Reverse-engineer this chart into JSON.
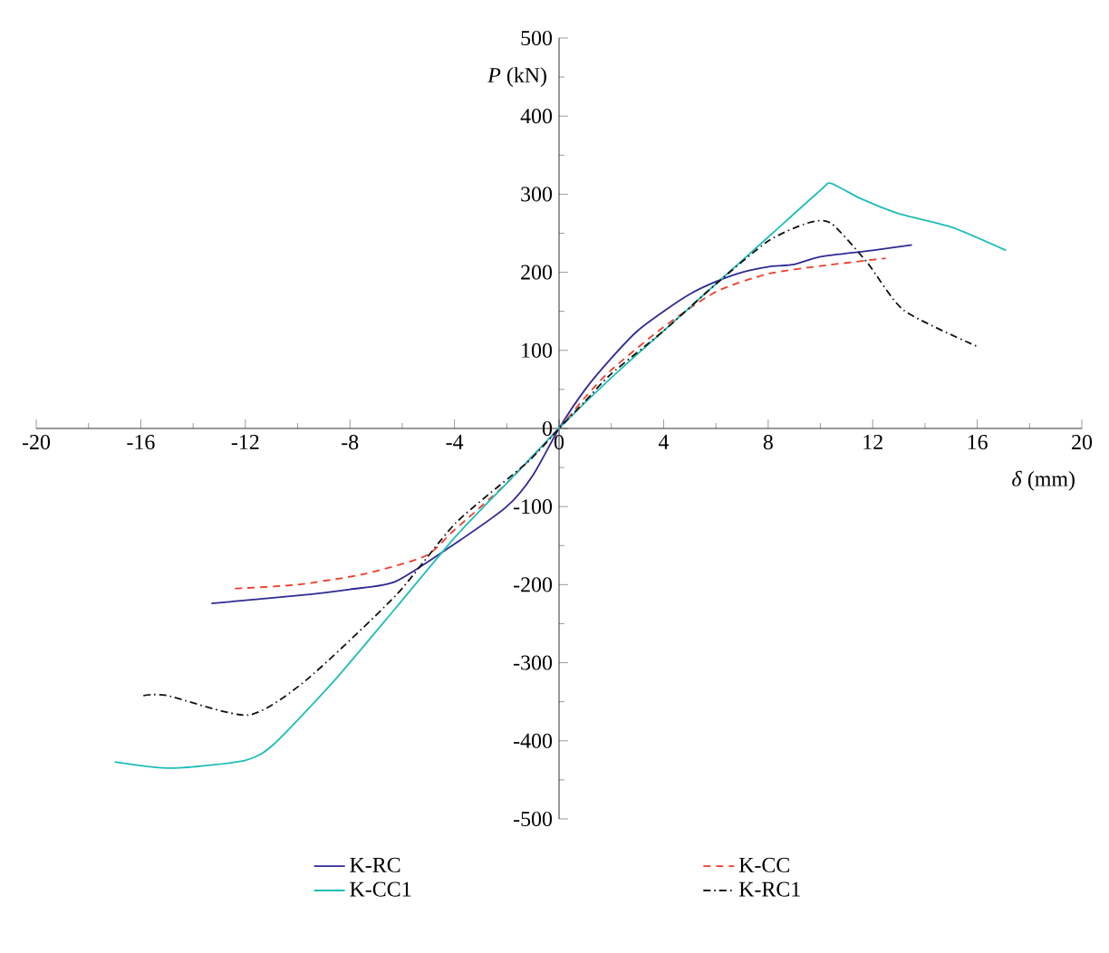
{
  "chart_data": {
    "type": "line",
    "xlabel": "*δ* (mm)",
    "ylabel": "*P* (kN)",
    "xlim": [
      -20,
      20
    ],
    "xticks": [
      -20,
      -16,
      -12,
      -8,
      -4,
      0,
      4,
      8,
      12,
      16,
      20
    ],
    "ylim": [
      -500,
      500
    ],
    "yticks": [
      -500,
      -400,
      -300,
      -200,
      -100,
      0,
      100,
      200,
      300,
      400,
      500
    ],
    "grid": false,
    "legend": "bottom",
    "marker": "none",
    "series": [
      {
        "name": "K-RC",
        "color": "#2e2a94",
        "line_style": "solid",
        "x": [
          -13.3,
          -10,
          -8,
          -6.25,
          -4,
          -2,
          -1,
          0,
          1,
          2,
          3,
          4,
          5,
          6,
          7,
          8,
          9,
          10,
          12,
          13.5
        ],
        "values": [
          -224,
          -214,
          -206,
          -196,
          -148,
          -100,
          -60,
          0,
          50,
          90,
          125,
          150,
          172,
          188,
          200,
          207,
          210,
          220,
          228,
          235
        ]
      },
      {
        "name": "K-CC",
        "color": "#f03c2a",
        "line_style": "dashed",
        "x": [
          -12.4,
          -10,
          -7.4,
          -5.1,
          -4,
          -2,
          0,
          1,
          2,
          4,
          6,
          8,
          10,
          12.5
        ],
        "values": [
          -205,
          -200,
          -186,
          -163,
          -130,
          -70,
          0,
          40,
          75,
          130,
          175,
          198,
          208,
          218
        ]
      },
      {
        "name": "K-CC1",
        "color": "#1fbdb8",
        "line_style": "solid",
        "x": [
          -17,
          -14.8,
          -12,
          -10.9,
          -8.6,
          -6.25,
          -4,
          -2,
          0,
          2,
          4,
          6,
          8,
          10,
          10.4,
          11.5,
          13,
          15,
          17.1
        ],
        "values": [
          -427,
          -435,
          -425,
          -404,
          -323,
          -230,
          -140,
          -70,
          0,
          65,
          125,
          185,
          245,
          305,
          314,
          295,
          275,
          258,
          228
        ]
      },
      {
        "name": "K-RC1",
        "color": "#111111",
        "line_style": "dashdot",
        "x": [
          -15.9,
          -15,
          -11.9,
          -9.7,
          -6.25,
          -3.95,
          -1.2,
          0,
          1,
          2,
          4,
          6,
          8,
          9.5,
          10.4,
          11.8,
          13.2,
          16
        ],
        "values": [
          -342,
          -342,
          -367,
          -323,
          -214,
          -121,
          -43,
          0,
          35,
          70,
          125,
          185,
          240,
          263,
          263,
          212,
          151,
          105
        ]
      }
    ]
  }
}
